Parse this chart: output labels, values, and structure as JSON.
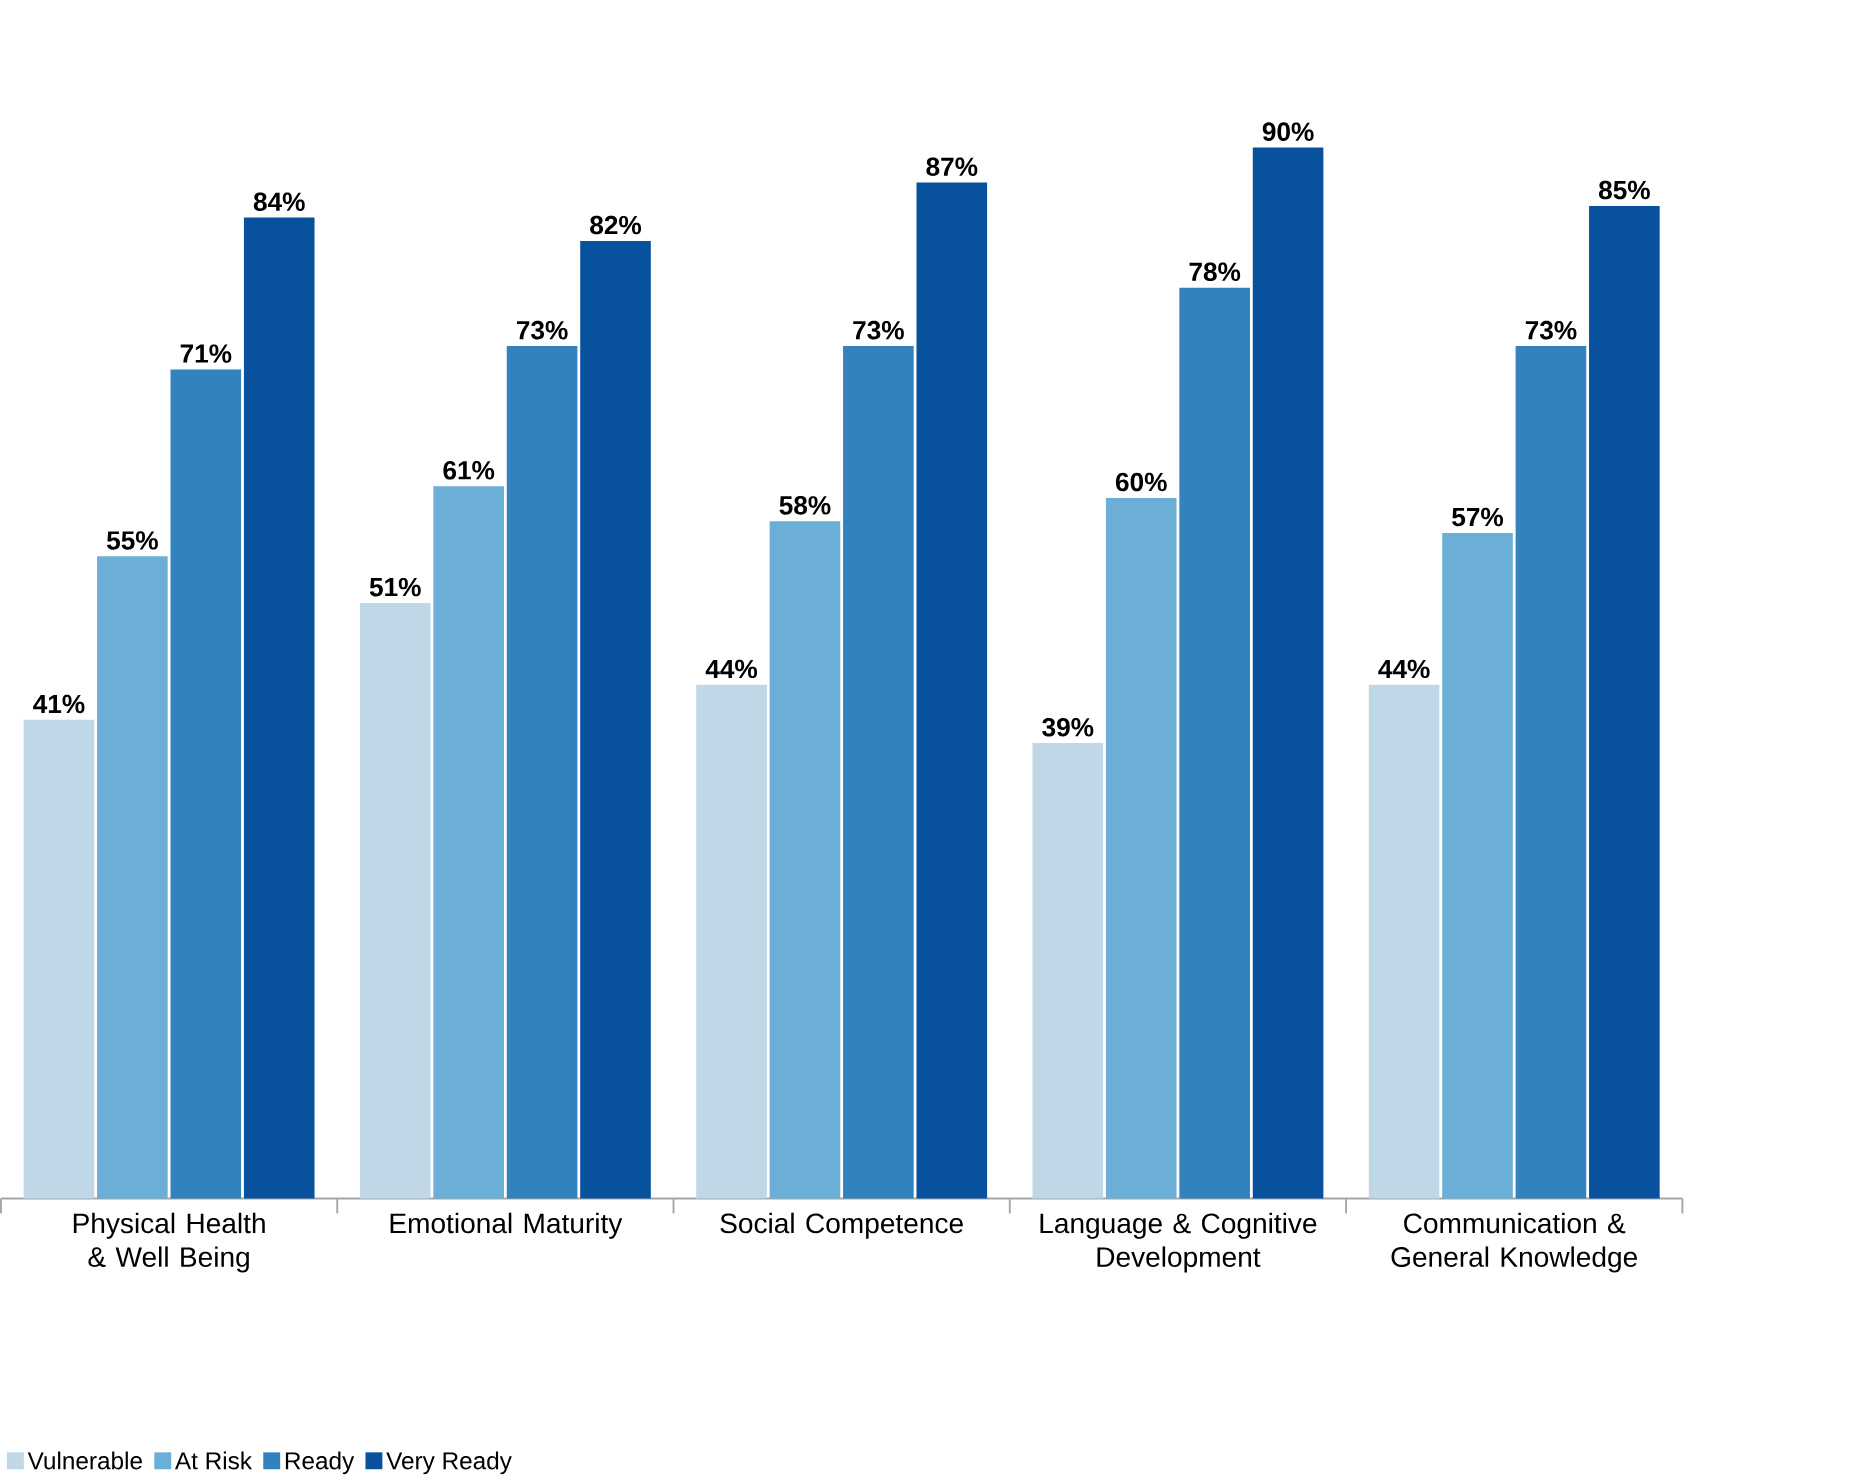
{
  "chart_data": {
    "type": "bar",
    "categories": [
      "Physical Health & Well Being",
      "Emotional Maturity",
      "Social Competence",
      "Language & Cognitive Development",
      "Communication & General Knowledge"
    ],
    "series": [
      {
        "name": "Vulnerable",
        "color": "#bfd7e6",
        "values": [
          41,
          51,
          44,
          39,
          44
        ],
        "value_labels": [
          "41%",
          "51%",
          "44%",
          "39%",
          "44%"
        ]
      },
      {
        "name": "At Risk",
        "color": "#6baed6",
        "values": [
          55,
          61,
          58,
          60,
          57
        ],
        "value_labels": [
          "55%",
          "61%",
          "58%",
          "60%",
          "57%"
        ]
      },
      {
        "name": "Ready",
        "color": "#3282bd",
        "values": [
          71,
          73,
          73,
          78,
          73
        ],
        "value_labels": [
          "71%",
          "73%",
          "73%",
          "78%",
          "73%"
        ]
      },
      {
        "name": "Very Ready",
        "color": "#08519c",
        "values": [
          84,
          82,
          87,
          90,
          85
        ],
        "value_labels": [
          "84%",
          "82%",
          "87%",
          "90%",
          "85%"
        ]
      }
    ],
    "legend": "bottom left"
  }
}
